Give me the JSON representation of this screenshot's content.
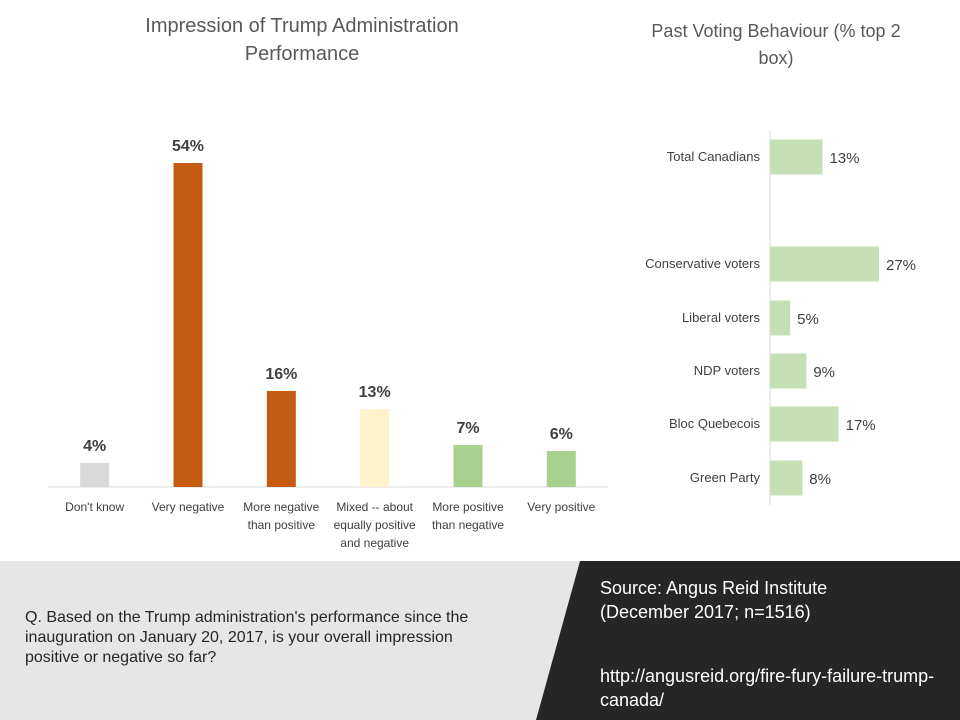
{
  "colors": {
    "dont_know": "#d9d9d9",
    "negative": "#c55a11",
    "mixed": "#fff2cc",
    "positive": "#a9d18e",
    "voting": "#c5e0b4",
    "footer_light": "#e7e6e6",
    "footer_dark": "#262626"
  },
  "chart_data": [
    {
      "type": "bar",
      "title": "Impression of Trump Administration Performance",
      "categories": [
        "Don't know",
        "Very negative",
        "More negative than positive",
        "Mixed -- about equally positive and negative",
        "More positive than negative",
        "Very positive"
      ],
      "category_lines": [
        [
          "Don't know"
        ],
        [
          "Very negative"
        ],
        [
          "More negative",
          "than positive"
        ],
        [
          "Mixed -- about",
          "equally positive",
          "and negative"
        ],
        [
          "More positive",
          "than negative"
        ],
        [
          "Very positive"
        ]
      ],
      "values": [
        4,
        54,
        16,
        13,
        7,
        6
      ],
      "labels": [
        "4%",
        "54%",
        "16%",
        "13%",
        "7%",
        "6%"
      ],
      "color_keys": [
        "dont_know",
        "negative",
        "negative",
        "mixed",
        "positive",
        "positive"
      ],
      "ylim": [
        0,
        60
      ]
    },
    {
      "type": "bar",
      "orientation": "horizontal",
      "title": "Past Voting Behaviour  (% top 2 box)",
      "categories": [
        "Total Canadians",
        "Conservative voters",
        "Liberal voters",
        "NDP voters",
        "Bloc Quebecois",
        "Green Party"
      ],
      "values": [
        13,
        27,
        5,
        9,
        17,
        8
      ],
      "labels": [
        "13%",
        "27%",
        "5%",
        "9%",
        "17%",
        "8%"
      ],
      "xlim": [
        0,
        30
      ]
    }
  ],
  "footer": {
    "question": "Q. Based on the Trump administration's performance since the inauguration on January 20, 2017, is your overall impression positive or negative so far?",
    "source": "Source:  Angus Reid Institute\n(December  2017; n=1516)",
    "url": "http://angusreid.org/fire-fury-failure-trump-canada/"
  }
}
